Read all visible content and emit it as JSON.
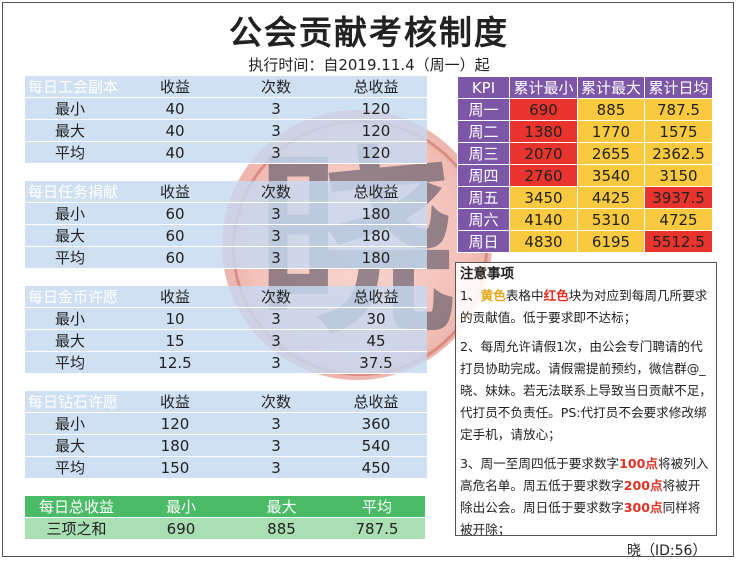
{
  "title": "公会贡献考核制度",
  "subtitle": "执行时间：自2019.11.4（周一）起",
  "col_headers": {
    "income": "收益",
    "times": "次数",
    "total": "总收益"
  },
  "sections": [
    {
      "name": "每日工会副本",
      "rows": [
        {
          "label": "最小",
          "income": "40",
          "times": "3",
          "total": "120"
        },
        {
          "label": "最大",
          "income": "40",
          "times": "3",
          "total": "120"
        },
        {
          "label": "平均",
          "income": "40",
          "times": "3",
          "total": "120"
        }
      ]
    },
    {
      "name": "每日任务捐献",
      "rows": [
        {
          "label": "最小",
          "income": "60",
          "times": "3",
          "total": "180"
        },
        {
          "label": "最大",
          "income": "60",
          "times": "3",
          "total": "180"
        },
        {
          "label": "平均",
          "income": "60",
          "times": "3",
          "total": "180"
        }
      ]
    },
    {
      "name": "每日金币许愿",
      "rows": [
        {
          "label": "最小",
          "income": "10",
          "times": "3",
          "total": "30"
        },
        {
          "label": "最大",
          "income": "15",
          "times": "3",
          "total": "45"
        },
        {
          "label": "平均",
          "income": "12.5",
          "times": "3",
          "total": "37.5"
        }
      ]
    },
    {
      "name": "每日钻石许愿",
      "rows": [
        {
          "label": "最小",
          "income": "120",
          "times": "3",
          "total": "360"
        },
        {
          "label": "最大",
          "income": "180",
          "times": "3",
          "total": "540"
        },
        {
          "label": "平均",
          "income": "150",
          "times": "3",
          "total": "450"
        }
      ]
    }
  ],
  "summary": {
    "headers": [
      "每日总收益",
      "最小",
      "最大",
      "平均"
    ],
    "row": [
      "三项之和",
      "690",
      "885",
      "787.5"
    ]
  },
  "kpi": {
    "headers": [
      "KPI",
      "累计最小",
      "累计最大",
      "累计日均"
    ],
    "rows": [
      {
        "day": "周一",
        "min": "690",
        "max": "885",
        "avg": "787.5"
      },
      {
        "day": "周二",
        "min": "1380",
        "max": "1770",
        "avg": "1575"
      },
      {
        "day": "周三",
        "min": "2070",
        "max": "2655",
        "avg": "2362.5"
      },
      {
        "day": "周四",
        "min": "2760",
        "max": "3540",
        "avg": "3150"
      },
      {
        "day": "周五",
        "min": "3450",
        "max": "4425",
        "avg": "3937.5"
      },
      {
        "day": "周六",
        "min": "4140",
        "max": "5310",
        "avg": "4725"
      },
      {
        "day": "周日",
        "min": "4830",
        "max": "6195",
        "avg": "5512.5"
      }
    ],
    "colors": {
      "yellow": "#f9c940",
      "red": "#e8342d",
      "purple": "#7d56a8"
    }
  },
  "notes": {
    "title": "注意事项",
    "n1": {
      "a": "1、",
      "b": "黄色",
      "c": "表格中",
      "d": "红色",
      "e": "块为对应到每周几所要求的贡献值。低于要求即不达标；"
    },
    "n2": "2、每周允许请假1次，由公会专门聘请的代打员协助完成。请假需提前预约，微信群@_晓、妹妹。若无法联系上导致当日贡献不足，代打员不负责任。PS:代打员不会要求修改绑定手机，请放心；",
    "n3": {
      "a": "3、周一至周四低于要求数字",
      "b": "100点",
      "c": "将被列入高危名单。周五低于要求数字",
      "d": "200点",
      "e": "将被开除出公会。周日低于要求数字",
      "f": "300点",
      "g": "同样将被开除；"
    }
  },
  "seal_char": "晓",
  "footer": "晓（ID:56）"
}
